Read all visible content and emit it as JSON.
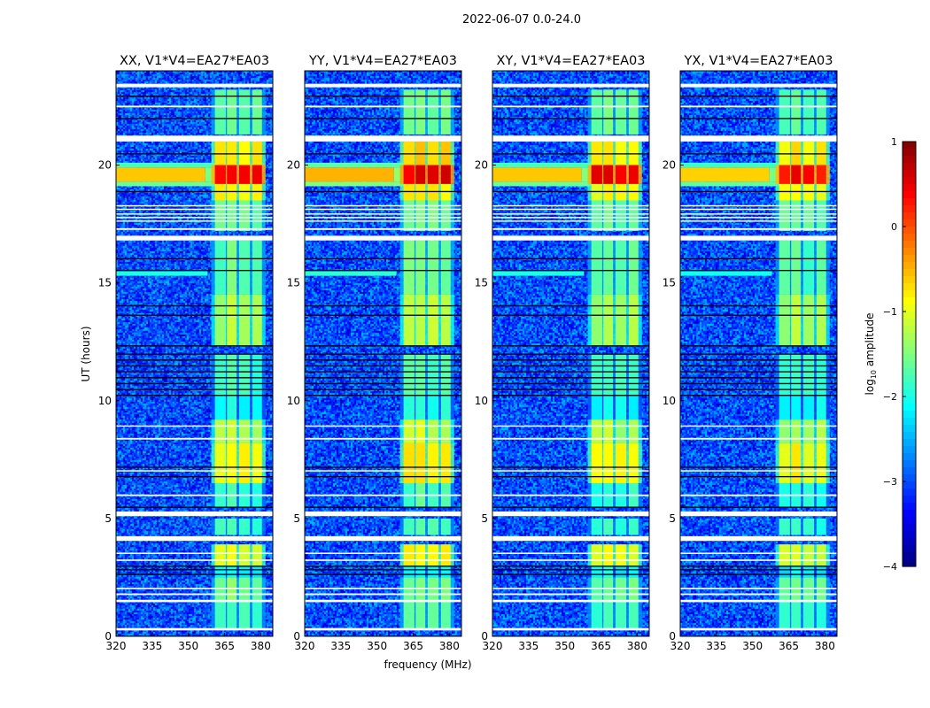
{
  "chart_data": {
    "type": "heatmap",
    "suptitle": "2022-06-07 0.0-24.0",
    "xlabel": "frequency (MHz)",
    "ylabel": "UT (hours)",
    "xlim": [
      320,
      385
    ],
    "ylim": [
      0,
      24
    ],
    "xticks": [
      "320",
      "335",
      "350",
      "365",
      "380"
    ],
    "xtick_values": [
      320,
      335,
      350,
      365,
      380
    ],
    "yticks": [
      "0",
      "5",
      "10",
      "15",
      "20"
    ],
    "ytick_values": [
      0,
      5,
      10,
      15,
      20
    ],
    "panels": [
      {
        "title": "XX, V1*V4=EA27*EA03",
        "level_offset": 0.0
      },
      {
        "title": "YY, V1*V4=EA27*EA03",
        "level_offset": 0.1
      },
      {
        "title": "XY, V1*V4=EA27*EA03",
        "level_offset": 0.0
      },
      {
        "title": "YX, V1*V4=EA27*EA03",
        "level_offset": -0.05
      }
    ],
    "colorbar": {
      "label_prefix": "log",
      "label_sub": "10",
      "label_suffix": " amplitude",
      "range": [
        -4,
        1
      ],
      "ticks": [
        "1",
        "0",
        "−1",
        "−2",
        "−3",
        "−4"
      ],
      "tick_values": [
        1,
        0,
        -1,
        -2,
        -3,
        -4
      ],
      "colormap": "jet"
    },
    "background_level": -2.9,
    "channel_blocks_mhz": [
      [
        361,
        365.5
      ],
      [
        366,
        370
      ],
      [
        371,
        375.5
      ],
      [
        376.5,
        380.5
      ]
    ],
    "channel_block_segments": [
      [
        0.3,
        1.5,
        -1.8
      ],
      [
        1.5,
        2.5,
        -1.6
      ],
      [
        2.5,
        3.0,
        -2.2
      ],
      [
        3.0,
        3.9,
        -1.0
      ],
      [
        4.3,
        5.0,
        -1.9
      ],
      [
        5.5,
        6.5,
        -1.9
      ],
      [
        6.5,
        8.2,
        -0.9
      ],
      [
        8.2,
        9.2,
        -1.3
      ],
      [
        9.2,
        10.2,
        -2.1
      ],
      [
        10.2,
        12.0,
        -1.9
      ],
      [
        12.3,
        14.5,
        -1.3
      ],
      [
        14.5,
        16.8,
        -1.7
      ],
      [
        17.2,
        18.5,
        -1.6
      ],
      [
        18.5,
        19.2,
        -0.9
      ],
      [
        19.2,
        20.0,
        0.4
      ],
      [
        20.0,
        21.0,
        -0.8
      ],
      [
        21.3,
        23.2,
        -1.7
      ]
    ],
    "broadband_rfi": [
      {
        "t": [
          19.1,
          19.3
        ],
        "f": [
          320,
          361
        ],
        "level": -1.6
      },
      {
        "t": [
          19.3,
          19.9
        ],
        "f": [
          320,
          357
        ],
        "level": -0.6
      },
      {
        "t": [
          19.3,
          19.9
        ],
        "f": [
          357,
          361
        ],
        "level": -1.5
      },
      {
        "t": [
          19.9,
          20.1
        ],
        "f": [
          320,
          361
        ],
        "level": -1.8
      },
      {
        "t": [
          15.3,
          15.5
        ],
        "f": [
          320,
          358
        ],
        "level": -2.0
      }
    ],
    "flagged_times": [
      [
        0.25,
        0.35
      ],
      [
        1.45,
        1.55
      ],
      [
        1.75,
        1.82
      ],
      [
        2.0,
        2.06
      ],
      [
        3.2,
        3.26
      ],
      [
        3.5,
        3.55
      ],
      [
        4.05,
        4.25
      ],
      [
        5.1,
        5.3
      ],
      [
        5.95,
        6.02
      ],
      [
        7.0,
        7.05
      ],
      [
        8.35,
        8.42
      ],
      [
        8.9,
        8.95
      ],
      [
        16.8,
        17.0
      ],
      [
        17.25,
        17.32
      ],
      [
        17.6,
        17.65
      ],
      [
        17.75,
        17.8
      ],
      [
        17.9,
        17.95
      ],
      [
        18.1,
        18.15
      ],
      [
        18.25,
        18.3
      ],
      [
        21.0,
        21.25
      ],
      [
        22.45,
        22.52
      ],
      [
        23.3,
        23.45
      ]
    ],
    "dropout_times": [
      [
        2.6,
        2.65
      ],
      [
        2.8,
        2.85
      ],
      [
        2.95,
        3.0
      ],
      [
        5.45,
        5.5
      ],
      [
        6.75,
        6.8
      ],
      [
        7.15,
        7.2
      ],
      [
        10.2,
        10.25
      ],
      [
        10.45,
        10.5
      ],
      [
        10.7,
        10.75
      ],
      [
        10.95,
        11.0
      ],
      [
        11.2,
        11.25
      ],
      [
        11.45,
        11.5
      ],
      [
        11.7,
        11.75
      ],
      [
        11.95,
        12.0
      ],
      [
        12.3,
        12.35
      ],
      [
        13.6,
        13.65
      ],
      [
        14.0,
        14.05
      ],
      [
        15.5,
        15.55
      ],
      [
        16.0,
        16.05
      ],
      [
        18.85,
        18.9
      ],
      [
        20.45,
        20.5
      ],
      [
        21.95,
        22.0
      ],
      [
        22.9,
        22.95
      ]
    ]
  }
}
